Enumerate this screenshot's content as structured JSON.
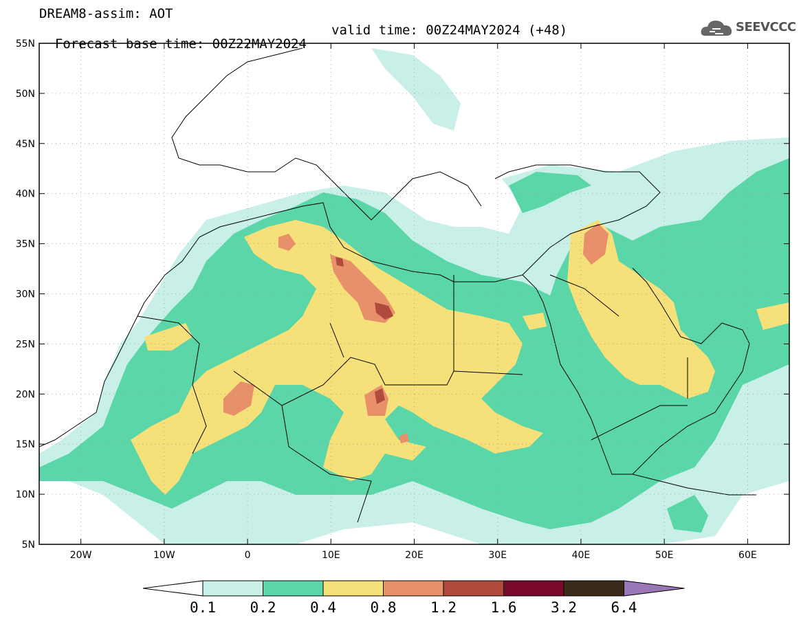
{
  "title": {
    "line1": "DREAM8-assim: AOT",
    "base_time": "Forecast base time: 00Z22MAY2024",
    "valid_time": "valid time: 00Z24MAY2024 (+48)"
  },
  "logo": {
    "text": "SEEVCCC",
    "icon": "cloud-icon"
  },
  "map": {
    "extent": {
      "lon": [
        -25,
        65
      ],
      "lat": [
        5,
        55
      ]
    },
    "lat_ticks": [
      "5N",
      "10N",
      "15N",
      "20N",
      "25N",
      "30N",
      "35N",
      "40N",
      "45N",
      "50N",
      "55N"
    ],
    "lon_ticks": [
      "20W",
      "10W",
      "0",
      "10E",
      "20E",
      "30E",
      "40E",
      "50E",
      "60E"
    ],
    "grid": true
  },
  "colorbar": {
    "labels": [
      "0.1",
      "0.2",
      "0.4",
      "0.8",
      "1.2",
      "1.6",
      "3.2",
      "6.4"
    ],
    "colors": [
      "#c8f0e8",
      "#5bd6a8",
      "#f5e07a",
      "#e8906a",
      "#b04a3c",
      "#7a0a2a",
      "#3c2a1a",
      "#9a78b8"
    ]
  },
  "field_colors": {
    "c1": "#c8f0e8",
    "c2": "#5bd6a8",
    "c3": "#f5e07a",
    "c4": "#e8906a",
    "c5": "#b04a3c",
    "c6": "#7a0a2a"
  }
}
